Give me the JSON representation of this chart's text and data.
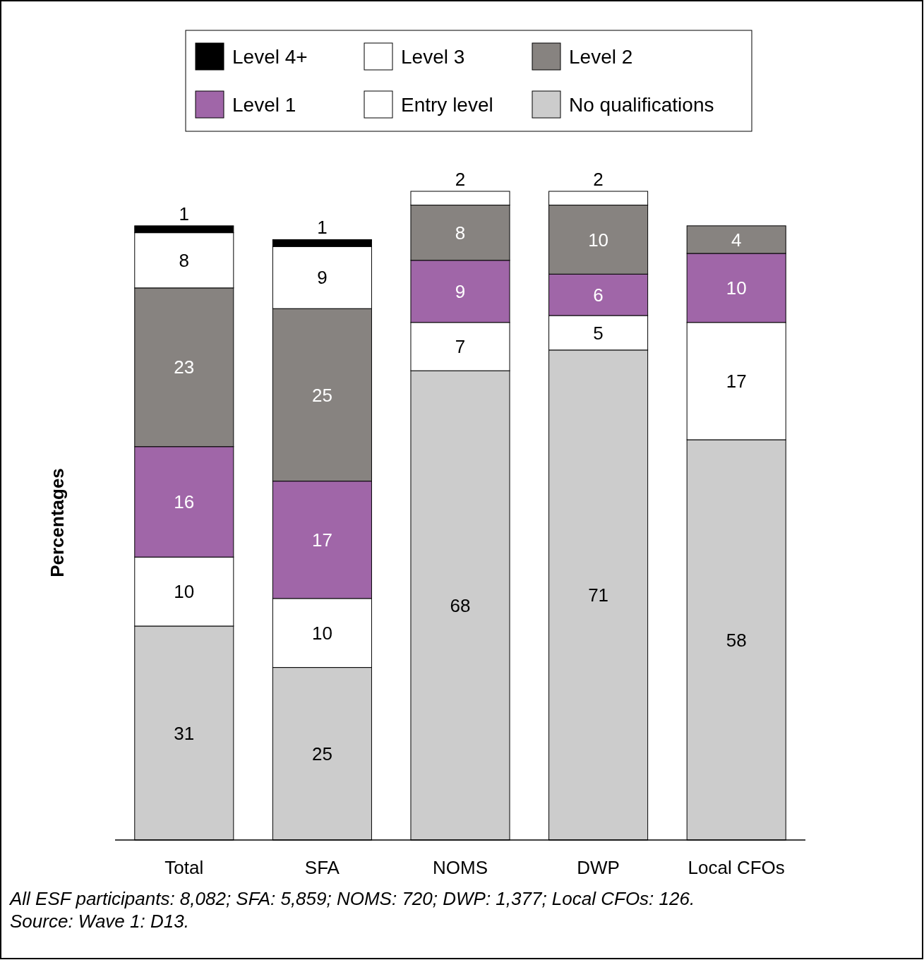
{
  "chart_data": {
    "type": "bar",
    "stacked": true,
    "ylabel": "Percentages",
    "categories": [
      "Total",
      "SFA",
      "NOMS",
      "DWP",
      "Local CFOs"
    ],
    "series": [
      {
        "name": "No qualifications",
        "color": "#cccccc",
        "values": [
          31,
          25,
          68,
          71,
          58
        ]
      },
      {
        "name": "Entry level",
        "color": "#ffffff",
        "values": [
          10,
          10,
          7,
          5,
          17
        ]
      },
      {
        "name": "Level 1",
        "color": "#a066a8",
        "values": [
          16,
          17,
          9,
          6,
          10
        ]
      },
      {
        "name": "Level 2",
        "color": "#878380",
        "values": [
          23,
          25,
          8,
          10,
          4
        ]
      },
      {
        "name": "Level 3",
        "color": "#ffffff",
        "values": [
          8,
          9,
          2,
          2,
          null
        ]
      },
      {
        "name": "Level 4+",
        "color": "#000000",
        "values": [
          1,
          1,
          null,
          null,
          null
        ]
      }
    ],
    "tick_labels": "x",
    "data_labels": true,
    "legend": "top",
    "annotations": [
      "All ESF participants: 8,082; SFA: 5,859; NOMS: 720; DWP: 1,377; Local CFOs: 126.",
      "Source: Wave 1: D13."
    ]
  }
}
